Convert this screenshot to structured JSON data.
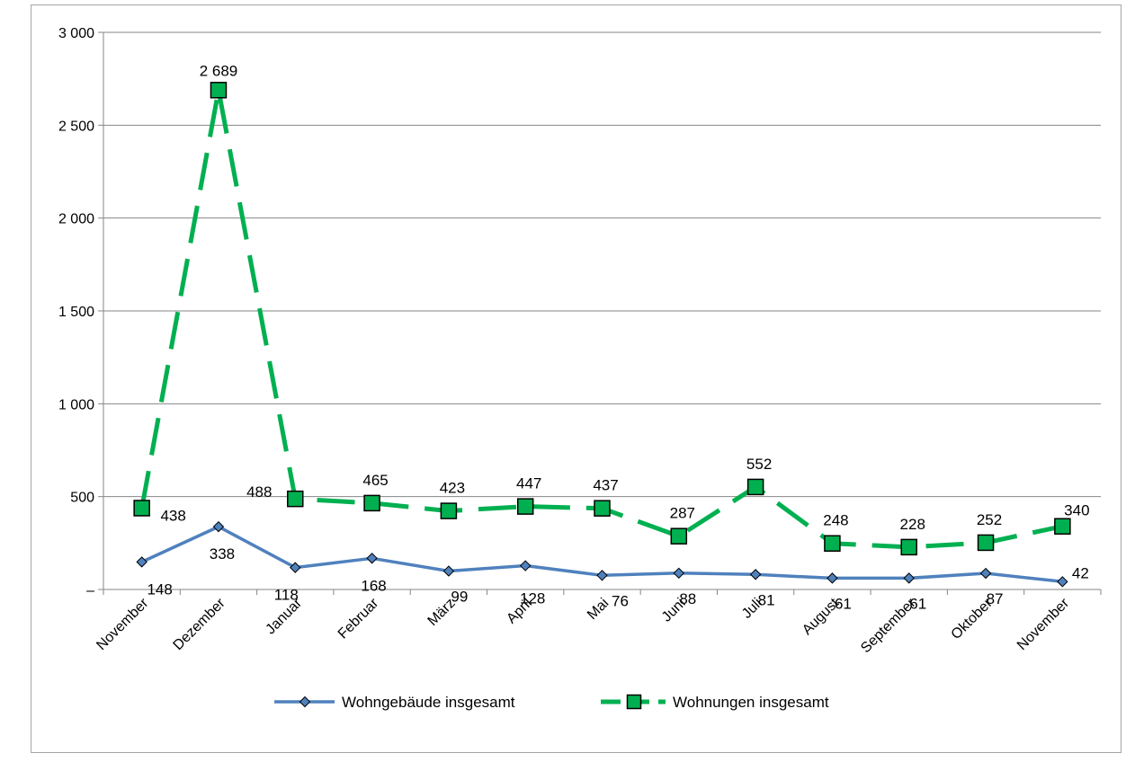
{
  "chart_data": {
    "type": "line",
    "title": "",
    "xlabel": "",
    "ylabel": "",
    "categories": [
      "November",
      "Dezember",
      "Januar",
      "Februar",
      "März",
      "April",
      "Mai",
      "Juni",
      "Juli",
      "August",
      "September",
      "Oktober",
      "November"
    ],
    "ylim": [
      0,
      3000
    ],
    "yticks": [
      {
        "value": 0,
        "label": "–"
      },
      {
        "value": 500,
        "label": "500"
      },
      {
        "value": 1000,
        "label": "1 000"
      },
      {
        "value": 1500,
        "label": "1 500"
      },
      {
        "value": 2000,
        "label": "2 000"
      },
      {
        "value": 2500,
        "label": "2 500"
      },
      {
        "value": 3000,
        "label": "3 000"
      }
    ],
    "grid": true,
    "legend_position": "bottom",
    "series": [
      {
        "name": "Wohngebäude insgesamt",
        "color": "#4F81BD",
        "marker": "diamond",
        "line_style": "solid",
        "values": [
          148,
          338,
          118,
          168,
          99,
          128,
          76,
          88,
          81,
          61,
          61,
          87,
          42
        ],
        "labels": [
          "148",
          "338",
          "118",
          "168",
          "99",
          "128",
          "76",
          "88",
          "81",
          "61",
          "61",
          "87",
          "42"
        ]
      },
      {
        "name": "Wohnungen insgesamt",
        "color": "#00B050",
        "marker": "square",
        "line_style": "dashed",
        "values": [
          438,
          2689,
          488,
          465,
          423,
          447,
          437,
          287,
          552,
          248,
          228,
          252,
          340
        ],
        "labels": [
          "438",
          "2 689",
          "488",
          "465",
          "423",
          "447",
          "437",
          "287",
          "552",
          "248",
          "228",
          "252",
          "340"
        ]
      }
    ]
  }
}
